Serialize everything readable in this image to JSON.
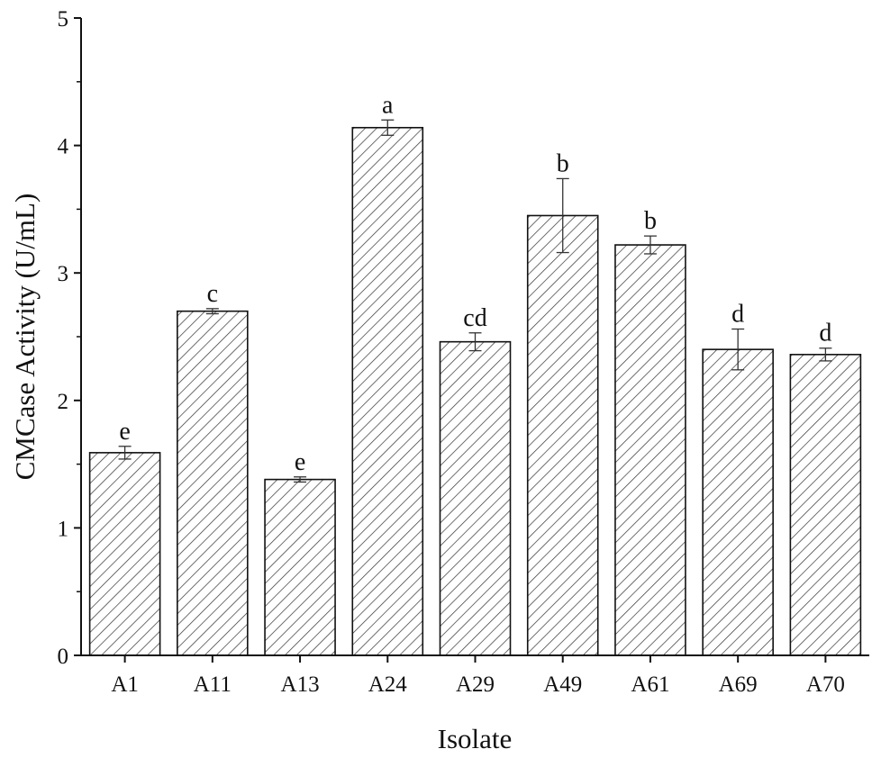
{
  "chart_data": {
    "type": "bar",
    "xlabel": "Isolate",
    "ylabel": "CMCase Activity (U/mL)",
    "ylim": [
      0,
      5
    ],
    "yticks": [
      "0",
      "1",
      "2",
      "3",
      "4",
      "5"
    ],
    "categories": [
      "A1",
      "A11",
      "A13",
      "A24",
      "A29",
      "A49",
      "A61",
      "A69",
      "A70"
    ],
    "values": [
      1.59,
      2.7,
      1.38,
      4.14,
      2.46,
      3.45,
      3.22,
      2.4,
      2.36
    ],
    "errors": [
      0.05,
      0.02,
      0.02,
      0.06,
      0.07,
      0.29,
      0.07,
      0.16,
      0.05
    ],
    "significance": [
      "e",
      "c",
      "e",
      "a",
      "cd",
      "b",
      "b",
      "d",
      "d"
    ],
    "bar_pattern": "diagonal-hatch",
    "bar_color": "#333333",
    "grid": false,
    "legend": "none"
  }
}
